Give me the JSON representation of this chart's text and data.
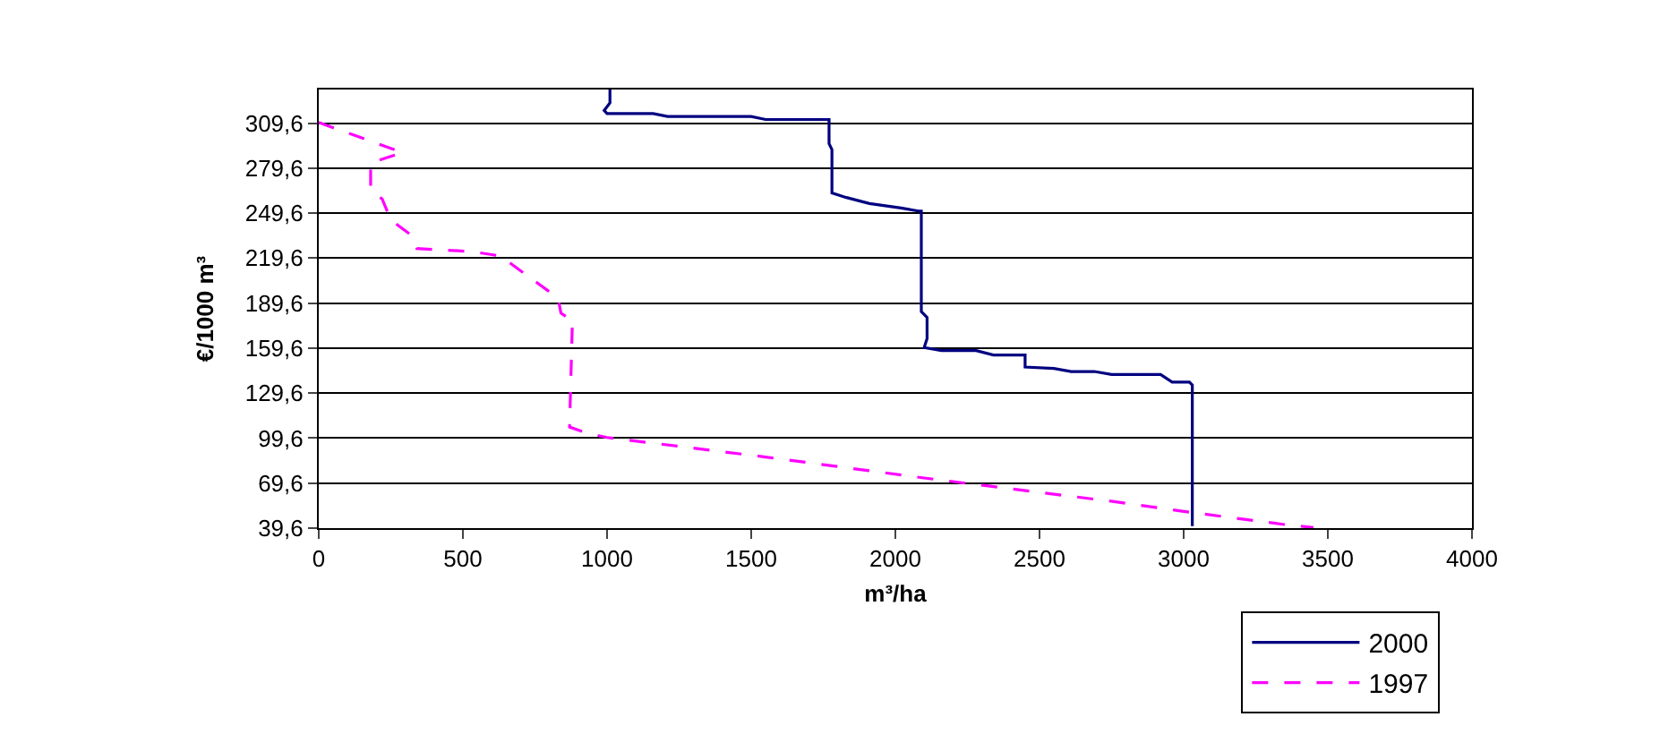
{
  "chart_data": {
    "type": "line",
    "xlabel": "m³/ha",
    "ylabel": "€/1000 m³",
    "xlim": [
      0,
      4000
    ],
    "xticks": [
      0,
      500,
      1000,
      1500,
      2000,
      2500,
      3000,
      3500,
      4000
    ],
    "ylim": [
      39.6,
      332
    ],
    "yticks": [
      {
        "value": 39.6,
        "label": "39,6"
      },
      {
        "value": 69.6,
        "label": "69,6"
      },
      {
        "value": 99.6,
        "label": "99,6"
      },
      {
        "value": 129.6,
        "label": "129,6"
      },
      {
        "value": 159.6,
        "label": "159,6"
      },
      {
        "value": 189.6,
        "label": "189,6"
      },
      {
        "value": 219.6,
        "label": "219,6"
      },
      {
        "value": 249.6,
        "label": "249,6"
      },
      {
        "value": 279.6,
        "label": "279,6"
      },
      {
        "value": 309.6,
        "label": "309,6"
      }
    ],
    "grid": "y",
    "legend": "bottom right",
    "marker": "none",
    "series": [
      {
        "name": "2000",
        "color": "#000080",
        "line_style": "solid",
        "x": [
          1010,
          1010,
          990,
          1000,
          1160,
          1210,
          1500,
          1550,
          1770,
          1770,
          1780,
          1780,
          1830,
          1910,
          2020,
          2080,
          2090,
          2090,
          2110,
          2110,
          2100,
          2160,
          2280,
          2340,
          2450,
          2450,
          2550,
          2610,
          2690,
          2750,
          2920,
          2960,
          3020,
          3030,
          3030
        ],
        "values": [
          332,
          323,
          318,
          316,
          316,
          314,
          314,
          312,
          312,
          296,
          292,
          263,
          260,
          256,
          253,
          251,
          251,
          184,
          180,
          166,
          160,
          158,
          158,
          155,
          155,
          147,
          146,
          144,
          144,
          142,
          142,
          137,
          137,
          135,
          41
        ]
      },
      {
        "name": "1997",
        "color": "#ff00ff",
        "line_style": "dashed",
        "x": [
          0,
          290,
          180,
          180,
          220,
          250,
          320,
          340,
          530,
          630,
          730,
          830,
          840,
          870,
          880,
          870,
          930,
          1000,
          1550,
          2100,
          2770,
          2990,
          3350,
          3450
        ],
        "values": [
          310,
          290,
          283,
          265,
          259,
          245,
          235,
          226,
          224,
          221,
          207,
          193,
          183,
          179,
          179,
          107,
          103,
          100,
          87,
          73,
          57,
          51,
          42,
          40
        ]
      }
    ]
  }
}
